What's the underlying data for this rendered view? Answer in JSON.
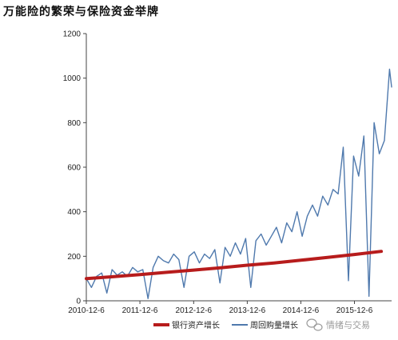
{
  "page": {
    "title": "万能险的繁荣与保险资金举牌"
  },
  "watermark": {
    "text": "情绪与交易",
    "color": "#9a9a9a"
  },
  "chart_data": {
    "type": "line",
    "title": "万能险的繁荣与保险资金举牌",
    "x_tick_labels": [
      "2010-12-6",
      "2011-12-6",
      "2012-12-6",
      "2013-12-6",
      "2014-12-6",
      "2015-12-6"
    ],
    "x_range": [
      "2010-12-06",
      "2016-08-15"
    ],
    "ylim": [
      0,
      1200
    ],
    "y_ticks": [
      0,
      200,
      400,
      600,
      800,
      1000,
      1200
    ],
    "grid": false,
    "legend_position": "bottom",
    "series": [
      {
        "name": "银行资产增长",
        "color": "#b71c1c",
        "x": [
          "2010-12-06",
          "2011-06-06",
          "2011-12-06",
          "2012-06-06",
          "2012-12-06",
          "2013-06-06",
          "2013-12-06",
          "2014-06-06",
          "2014-12-06",
          "2015-06-06",
          "2015-12-06",
          "2016-06-06"
        ],
        "values": [
          100,
          108,
          118,
          128,
          138,
          148,
          160,
          170,
          182,
          195,
          208,
          222
        ]
      },
      {
        "name": "周回购量增长",
        "color": "#4f79ad",
        "x": [
          "2010-12-06",
          "2011-01-10",
          "2011-02-14",
          "2011-03-21",
          "2011-04-25",
          "2011-05-30",
          "2011-07-04",
          "2011-08-08",
          "2011-09-12",
          "2011-10-17",
          "2011-11-21",
          "2011-12-26",
          "2012-01-30",
          "2012-03-05",
          "2012-04-09",
          "2012-05-14",
          "2012-06-18",
          "2012-07-23",
          "2012-08-27",
          "2012-10-01",
          "2012-11-05",
          "2012-12-10",
          "2013-01-14",
          "2013-02-18",
          "2013-03-25",
          "2013-04-29",
          "2013-06-03",
          "2013-07-08",
          "2013-08-12",
          "2013-09-16",
          "2013-10-21",
          "2013-11-25",
          "2013-12-30",
          "2014-02-03",
          "2014-03-10",
          "2014-04-14",
          "2014-05-19",
          "2014-06-23",
          "2014-07-28",
          "2014-09-01",
          "2014-10-06",
          "2014-11-10",
          "2014-12-15",
          "2015-01-19",
          "2015-02-23",
          "2015-03-30",
          "2015-05-04",
          "2015-06-08",
          "2015-07-13",
          "2015-08-17",
          "2015-09-21",
          "2015-10-26",
          "2015-11-30",
          "2016-01-04",
          "2016-02-08",
          "2016-03-14",
          "2016-04-18",
          "2016-05-23",
          "2016-06-27",
          "2016-08-01",
          "2016-08-15"
        ],
        "values": [
          100,
          60,
          110,
          125,
          35,
          140,
          115,
          130,
          110,
          150,
          130,
          140,
          10,
          150,
          200,
          180,
          170,
          210,
          185,
          60,
          200,
          220,
          170,
          210,
          190,
          230,
          80,
          240,
          200,
          260,
          210,
          280,
          60,
          270,
          300,
          250,
          290,
          330,
          260,
          350,
          310,
          400,
          290,
          380,
          430,
          380,
          470,
          430,
          500,
          480,
          690,
          90,
          650,
          560,
          740,
          20,
          800,
          660,
          720,
          1040,
          960
        ]
      }
    ]
  }
}
